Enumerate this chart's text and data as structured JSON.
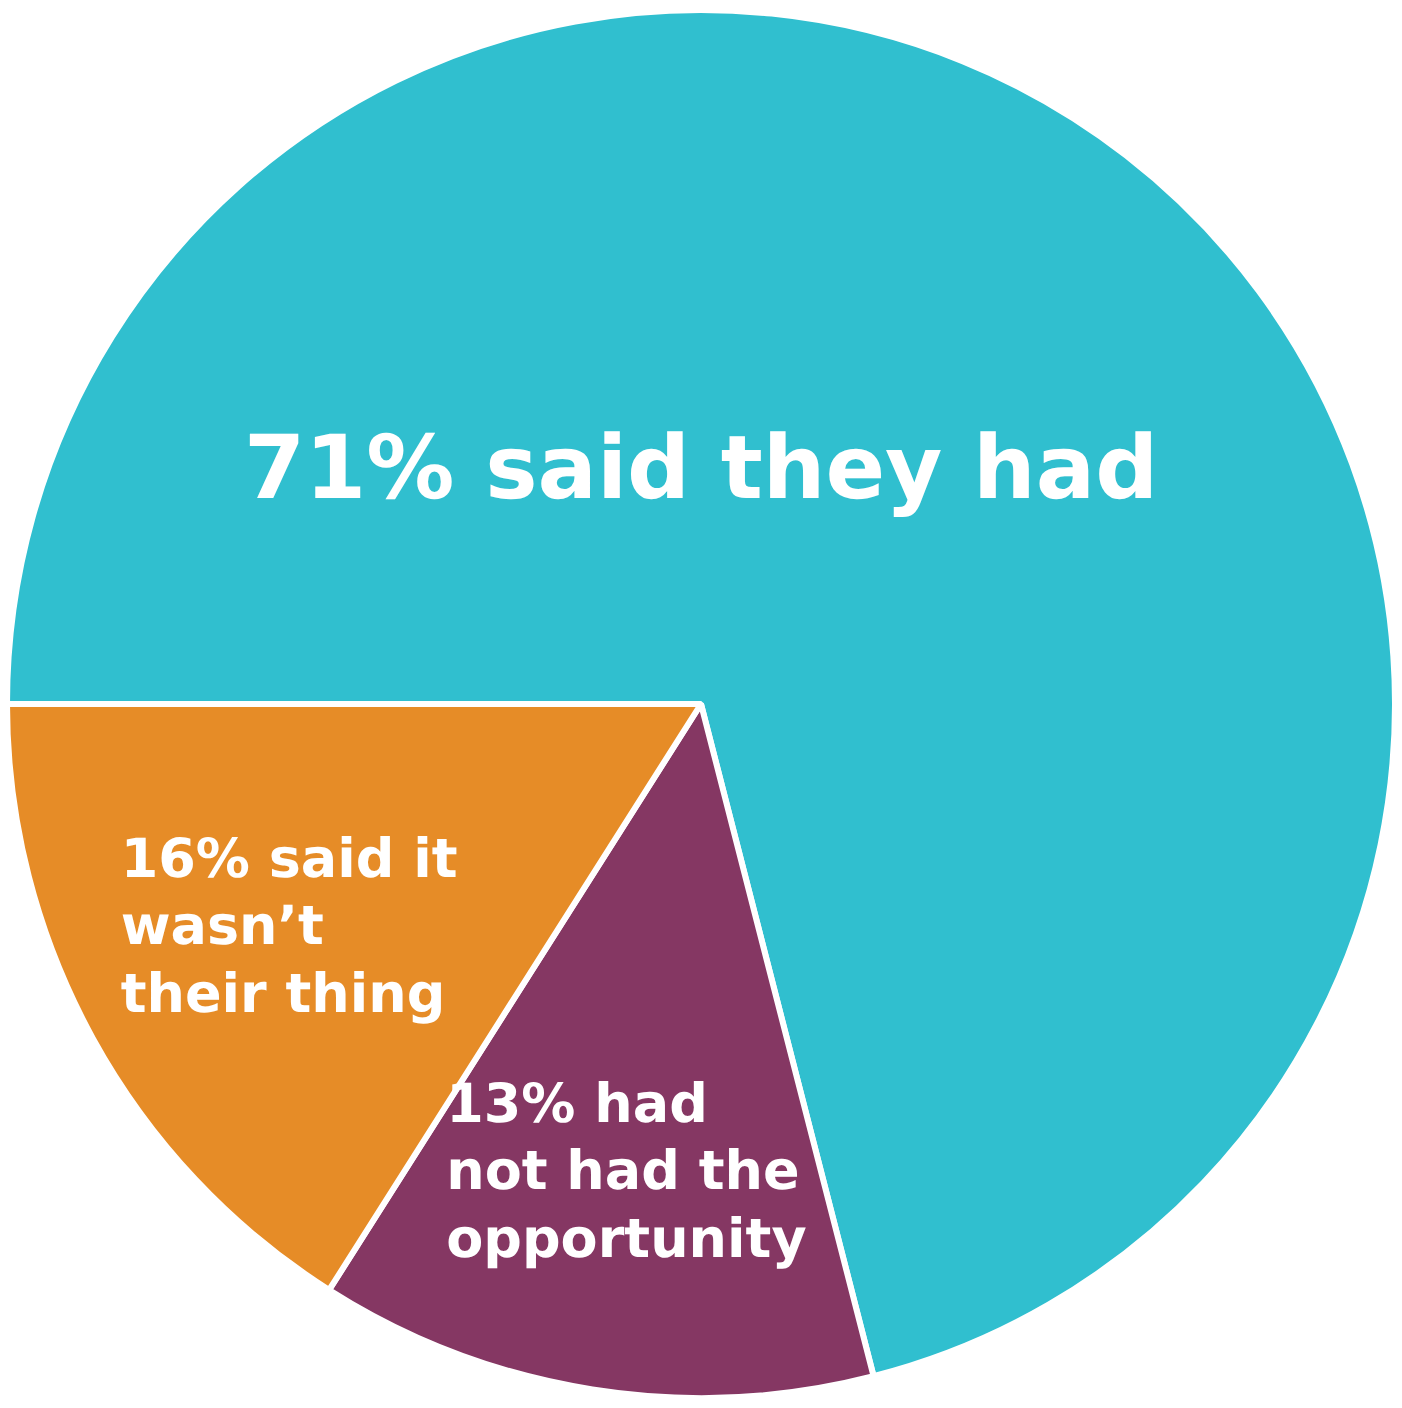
{
  "chart_data": {
    "type": "pie",
    "categories": [
      "71% said they had",
      "13% had not had the opportunity",
      "16% said it wasn’t their thing"
    ],
    "values": [
      71,
      13,
      16
    ],
    "colors": [
      "#30bfcf",
      "#853763",
      "#e68c27"
    ],
    "legend": false
  }
}
